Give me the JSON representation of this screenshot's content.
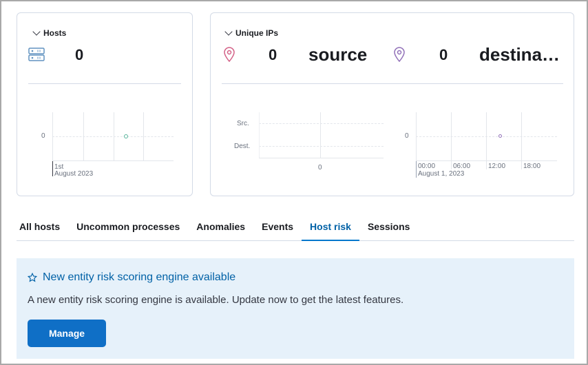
{
  "hosts_panel": {
    "title": "Hosts",
    "count": "0",
    "icon": "server-icon",
    "chart": {
      "type": "line",
      "y_ticks": [
        "0"
      ],
      "x_ticks": [
        "1st",
        "August 2023"
      ],
      "points": [
        {
          "y": 0
        }
      ],
      "color": "#54b399"
    }
  },
  "ips_panel": {
    "title": "Unique IPs",
    "source_count": "0",
    "source_label": "source",
    "destination_count": "0",
    "destination_label": "destina…",
    "source_color": "#d36086",
    "destination_color": "#9170b8",
    "bar_chart": {
      "type": "bar",
      "categories": [
        "Src.",
        "Dest."
      ],
      "values": [
        0,
        0
      ],
      "x_ticks": [
        "0"
      ]
    },
    "line_chart": {
      "type": "line",
      "y_ticks": [
        "0"
      ],
      "x_ticks": [
        "00:00",
        "06:00",
        "12:00",
        "18:00"
      ],
      "x_sublabel": "August 1, 2023",
      "points": [
        {
          "y": 0
        }
      ],
      "color": "#9170b8"
    }
  },
  "tabs": [
    {
      "label": "All hosts"
    },
    {
      "label": "Uncommon processes"
    },
    {
      "label": "Anomalies"
    },
    {
      "label": "Events"
    },
    {
      "label": "Host risk",
      "active": true
    },
    {
      "label": "Sessions"
    }
  ],
  "callout": {
    "title": "New entity risk scoring engine available",
    "text": "A new entity risk scoring engine is available. Update now to get the latest features.",
    "button": "Manage"
  }
}
